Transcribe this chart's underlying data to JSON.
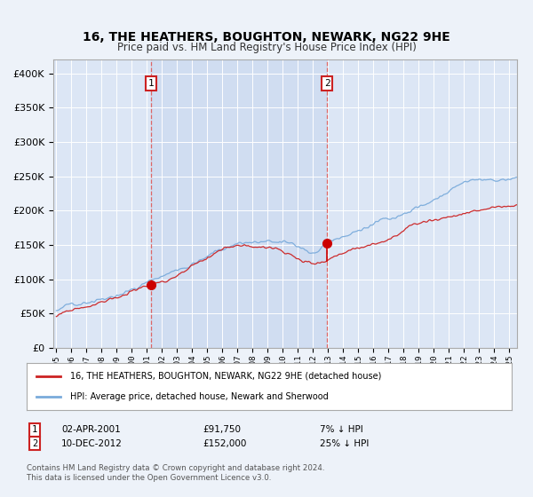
{
  "title": "16, THE HEATHERS, BOUGHTON, NEWARK, NG22 9HE",
  "subtitle": "Price paid vs. HM Land Registry's House Price Index (HPI)",
  "legend_entry1": "16, THE HEATHERS, BOUGHTON, NEWARK, NG22 9HE (detached house)",
  "legend_entry2": "HPI: Average price, detached house, Newark and Sherwood",
  "annotation1_date": "02-APR-2001",
  "annotation1_price": "£91,750",
  "annotation1_hpi": "7% ↓ HPI",
  "annotation2_date": "10-DEC-2012",
  "annotation2_price": "£152,000",
  "annotation2_hpi": "25% ↓ HPI",
  "footer1": "Contains HM Land Registry data © Crown copyright and database right 2024.",
  "footer2": "This data is licensed under the Open Government Licence v3.0.",
  "sale1_x": 2001.25,
  "sale1_y": 91750,
  "sale2_x": 2012.92,
  "sale2_y": 152000,
  "ylim": [
    0,
    420000
  ],
  "xlim_start": 1994.8,
  "xlim_end": 2025.5,
  "bg_color": "#edf2f9",
  "plot_bg_color": "#dce6f5",
  "grid_color": "#ffffff",
  "hpi_line_color": "#7aabdb",
  "property_line_color": "#cc2222",
  "sale_dot_color": "#cc0000",
  "vline_color": "#dd6666",
  "shade_color": "#c8d8ef",
  "shade_alpha": 0.6
}
